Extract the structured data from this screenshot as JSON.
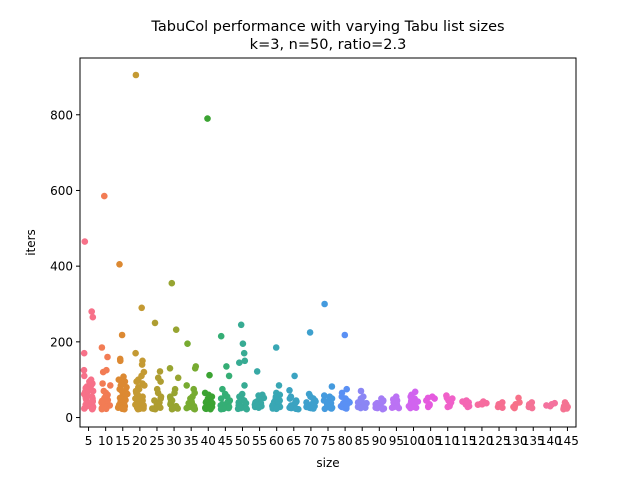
{
  "chart_data": {
    "type": "scatter",
    "style": "strip-plot",
    "title": "TabuCol performance with varying Tabu list sizes",
    "subtitle": "k=3, n=50, ratio=2.3",
    "xlabel": "size",
    "ylabel": "iters",
    "ylim": [
      -25,
      950
    ],
    "yticks": [
      0,
      200,
      400,
      600,
      800
    ],
    "grid": false,
    "legend": "none",
    "categories": [
      "5",
      "10",
      "15",
      "20",
      "25",
      "30",
      "35",
      "40",
      "45",
      "50",
      "55",
      "60",
      "65",
      "70",
      "75",
      "80",
      "85",
      "90",
      "95",
      "100",
      "105",
      "110",
      "115",
      "120",
      "125",
      "130",
      "135",
      "140",
      "145"
    ],
    "colors": [
      "#f77189",
      "#f27c54",
      "#dc8932",
      "#c49a33",
      "#ae9d31",
      "#97a431",
      "#77ab31",
      "#3ba332",
      "#35ae75",
      "#37ab93",
      "#38a9a5",
      "#39a7b4",
      "#3ba3c1",
      "#3ea0cd",
      "#449ade",
      "#5a90f4",
      "#8b86f4",
      "#a47df5",
      "#bb72f4",
      "#d164ef",
      "#e45ade",
      "#f061c9",
      "#f466b3",
      "#f66c9f",
      "#f66e90",
      "#f77189",
      "#f47296",
      "#f4729e",
      "#f47392"
    ],
    "values": [
      [
        465,
        280,
        265,
        170,
        125,
        110,
        100,
        95,
        90,
        85,
        82,
        78,
        75,
        72,
        70,
        68,
        65,
        62,
        60,
        58,
        55,
        52,
        50,
        48,
        45,
        42,
        40,
        38,
        36,
        34,
        32,
        30,
        28,
        26,
        25,
        24,
        23,
        22
      ],
      [
        585,
        185,
        160,
        125,
        120,
        90,
        85,
        70,
        65,
        60,
        58,
        55,
        52,
        50,
        48,
        46,
        44,
        42,
        40,
        38,
        36,
        34,
        32,
        30,
        28,
        26,
        25,
        24,
        23,
        22
      ],
      [
        405,
        218,
        155,
        150,
        108,
        100,
        95,
        92,
        88,
        85,
        80,
        75,
        70,
        68,
        65,
        62,
        60,
        58,
        55,
        52,
        50,
        48,
        46,
        44,
        42,
        40,
        38,
        36,
        34,
        32,
        30,
        28,
        26,
        25,
        24,
        23,
        22
      ],
      [
        905,
        290,
        170,
        150,
        140,
        120,
        110,
        100,
        95,
        90,
        85,
        80,
        75,
        70,
        65,
        60,
        55,
        50,
        48,
        45,
        42,
        40,
        38,
        36,
        34,
        32,
        30,
        28,
        26,
        24,
        23,
        22
      ],
      [
        250,
        122,
        105,
        95,
        75,
        65,
        55,
        50,
        45,
        40,
        38,
        35,
        32,
        30,
        28,
        26,
        24,
        23,
        22
      ],
      [
        355,
        232,
        130,
        105,
        75,
        65,
        55,
        50,
        45,
        40,
        35,
        32,
        30,
        28,
        26,
        25,
        24,
        23,
        22
      ],
      [
        195,
        135,
        130,
        85,
        75,
        65,
        55,
        50,
        45,
        40,
        38,
        35,
        32,
        30,
        28,
        26,
        25,
        24,
        23,
        22
      ],
      [
        790,
        112,
        65,
        60,
        55,
        50,
        45,
        42,
        40,
        38,
        35,
        32,
        30,
        28,
        26,
        25,
        24,
        23,
        22
      ],
      [
        215,
        135,
        110,
        75,
        62,
        55,
        50,
        45,
        40,
        38,
        35,
        32,
        30,
        28,
        26,
        25,
        24,
        23,
        22
      ],
      [
        245,
        195,
        170,
        150,
        145,
        85,
        62,
        55,
        50,
        45,
        40,
        38,
        35,
        32,
        30,
        28,
        26,
        25,
        24,
        23,
        22
      ],
      [
        122,
        60,
        58,
        55,
        52,
        50,
        48,
        45,
        42,
        40,
        38,
        36,
        34,
        32,
        30,
        28,
        26
      ],
      [
        185,
        85,
        65,
        60,
        55,
        50,
        45,
        42,
        40,
        38,
        35,
        32,
        30,
        28,
        26,
        25,
        24,
        23
      ],
      [
        110,
        72,
        55,
        50,
        45,
        42,
        40,
        38,
        35,
        32,
        30,
        28,
        26,
        25,
        24,
        23,
        22
      ],
      [
        225,
        62,
        55,
        50,
        45,
        42,
        40,
        38,
        35,
        32,
        30,
        28,
        26,
        25,
        24
      ],
      [
        300,
        82,
        58,
        55,
        50,
        45,
        42,
        40,
        38,
        35,
        32,
        30,
        28,
        26,
        25,
        24,
        23
      ],
      [
        218,
        75,
        65,
        55,
        50,
        45,
        42,
        40,
        38,
        35,
        32,
        30,
        28,
        26,
        25,
        24
      ],
      [
        70,
        55,
        50,
        45,
        42,
        40,
        38,
        35,
        32,
        30,
        28,
        26,
        25
      ],
      [
        50,
        45,
        42,
        40,
        38,
        35,
        32,
        30,
        28,
        26,
        25,
        24,
        22
      ],
      [
        55,
        48,
        45,
        42,
        40,
        38,
        35,
        32,
        30,
        28,
        26,
        25
      ],
      [
        68,
        60,
        55,
        50,
        45,
        42,
        40,
        38,
        35,
        32,
        30,
        28,
        26,
        25
      ],
      [
        55,
        52,
        50,
        45,
        35,
        32,
        30,
        28
      ],
      [
        58,
        52,
        50,
        45,
        40,
        35,
        30,
        28
      ],
      [
        45,
        42,
        40,
        35,
        30,
        28
      ],
      [
        42,
        40,
        38,
        36,
        35,
        34
      ],
      [
        40,
        35,
        30,
        28,
        26
      ],
      [
        52,
        40,
        35,
        30,
        28,
        25
      ],
      [
        40,
        35,
        30,
        28,
        25
      ],
      [
        38,
        35,
        32,
        30
      ],
      [
        40,
        35,
        30,
        28,
        25,
        24,
        22
      ]
    ]
  }
}
